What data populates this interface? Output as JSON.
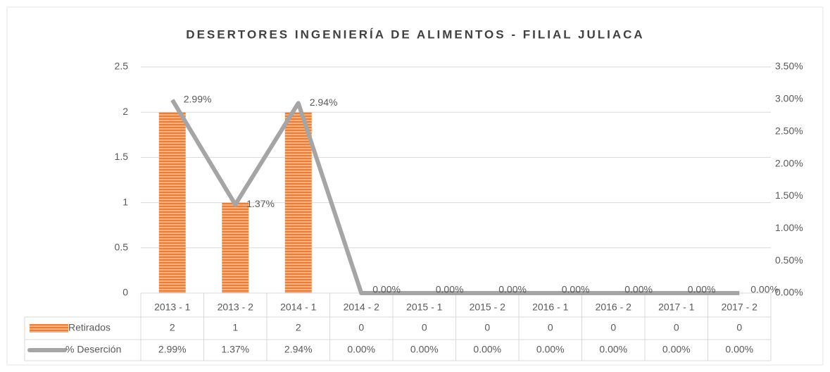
{
  "chart_data": {
    "type": "bar_line",
    "title": "DESERTORES INGENIERÍA DE ALIMENTOS - FILIAL JULIACA",
    "categories": [
      "2013 - 1",
      "2013 - 2",
      "2014 - 1",
      "2014 - 2",
      "2015 - 1",
      "2015 - 2",
      "2016 - 1",
      "2016 - 2",
      "2017 - 1",
      "2017 - 2"
    ],
    "series": [
      {
        "name": "Retirados",
        "color": "#ed7d31",
        "values": [
          2,
          1,
          2,
          0,
          0,
          0,
          0,
          0,
          0,
          0
        ]
      },
      {
        "name": "% Deserción",
        "color": "#a5a5a5",
        "axis": "y2",
        "values": [
          2.99,
          1.37,
          2.94,
          0,
          0,
          0,
          0,
          0,
          0,
          0
        ],
        "value_labels": [
          "2.99%",
          "1.37%",
          "2.94%",
          "0.00%",
          "0.00%",
          "0.00%",
          "0.00%",
          "0.00%",
          "0.00%",
          "0.00%"
        ]
      }
    ],
    "ylim": [
      0,
      2.5
    ],
    "yticks": [
      0,
      0.5,
      1,
      1.5,
      2,
      2.5
    ],
    "y2lim": [
      0,
      3.5
    ],
    "y2ticks": [
      {
        "value": 0,
        "label": "0.00%"
      },
      {
        "value": 0.5,
        "label": "0.50%"
      },
      {
        "value": 1,
        "label": "1.00%"
      },
      {
        "value": 1.5,
        "label": "1.50%"
      },
      {
        "value": 2,
        "label": "2.00%"
      },
      {
        "value": 2.5,
        "label": "2.50%"
      },
      {
        "value": 3,
        "label": "3.00%"
      },
      {
        "value": 3.5,
        "label": "3.50%"
      }
    ],
    "grid": true
  }
}
